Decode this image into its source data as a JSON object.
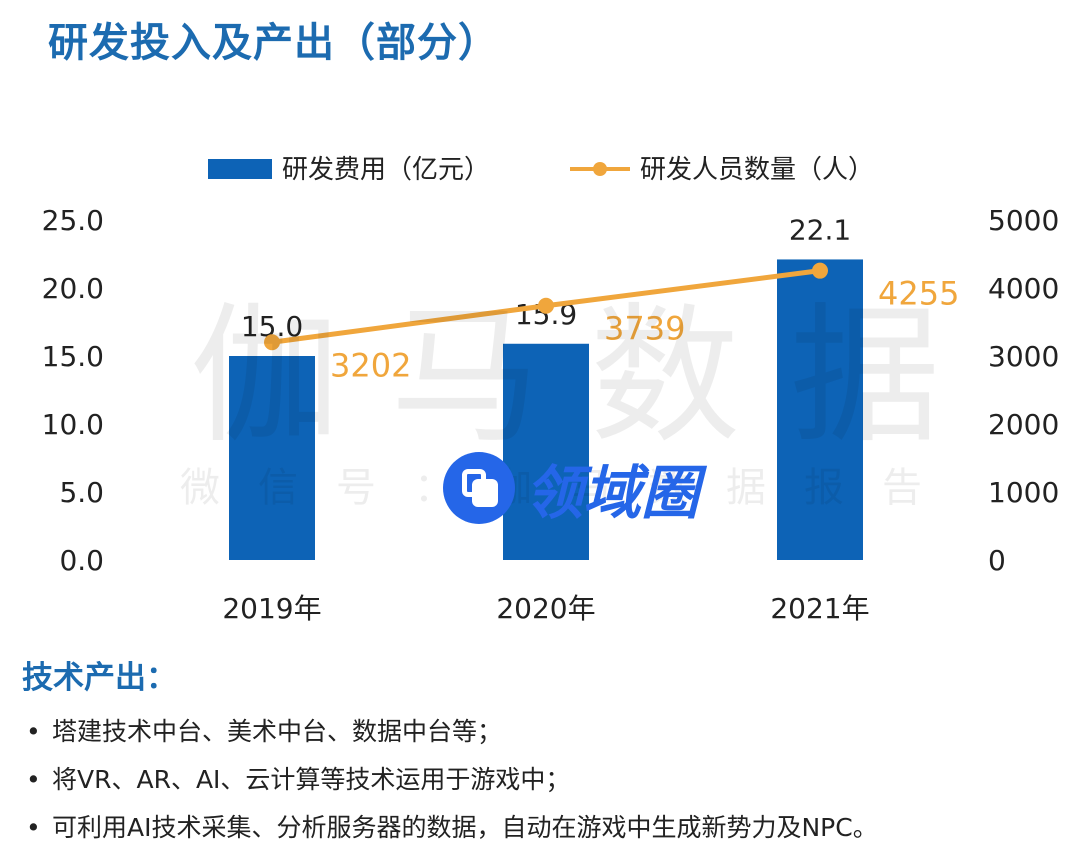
{
  "title": "研发投入及产出（部分）",
  "chart_data": {
    "type": "bar",
    "categories": [
      "2019年",
      "2020年",
      "2021年"
    ],
    "series": [
      {
        "name": "研发费用（亿元）",
        "type": "bar",
        "axis": "left",
        "values": [
          15.0,
          15.9,
          22.1
        ],
        "labels": [
          "15.0",
          "15.9",
          "22.1"
        ],
        "color": "#0d63b6"
      },
      {
        "name": "研发人员数量（人）",
        "type": "line",
        "axis": "right",
        "values": [
          3202,
          3739,
          4255
        ],
        "labels": [
          "3202",
          "3739",
          "4255"
        ],
        "color": "#f0a63c"
      }
    ],
    "y_left": {
      "range": [
        0,
        25
      ],
      "ticks": [
        "0.0",
        "5.0",
        "10.0",
        "15.0",
        "20.0",
        "25.0"
      ]
    },
    "y_right": {
      "range": [
        0,
        5000
      ],
      "ticks": [
        "0",
        "1000",
        "2000",
        "3000",
        "4000",
        "5000"
      ]
    },
    "legend_position": "top-center",
    "grid": false
  },
  "watermark": {
    "main": "伽马数据",
    "sub": "微信号：伽马数据报告"
  },
  "badge": {
    "text": "领域圈",
    "icon": "overlap-squares-icon"
  },
  "tech_output": {
    "heading": "技术产出：",
    "items": [
      "塔建技术中台、美术中台、数据中台等；",
      "将VR、AR、AI、云计算等技术运用于游戏中；",
      "可利用AI技术采集、分析服务器的数据，自动在游戏中生成新势力及NPC。"
    ]
  }
}
